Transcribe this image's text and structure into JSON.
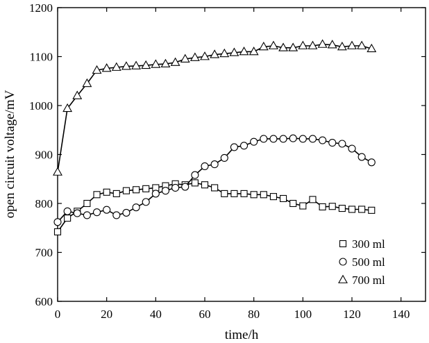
{
  "chart_data": {
    "type": "line",
    "title": "",
    "xlabel": "time/h",
    "ylabel": "open circuit voltage/mV",
    "xlim": [
      0,
      150
    ],
    "ylim": [
      600,
      1200
    ],
    "xticks": [
      "0",
      "20",
      "40",
      "60",
      "80",
      "100",
      "120",
      "140"
    ],
    "yticks": [
      "600",
      "700",
      "800",
      "900",
      "1000",
      "1100",
      "1200"
    ],
    "grid": false,
    "legend_position": "bottom-right",
    "series": [
      {
        "name": "300 ml",
        "marker": "square",
        "x": [
          0,
          4,
          8,
          12,
          16,
          20,
          24,
          28,
          32,
          36,
          40,
          44,
          48,
          52,
          56,
          60,
          64,
          68,
          72,
          76,
          80,
          84,
          88,
          92,
          96,
          100,
          104,
          108,
          112,
          116,
          120,
          124,
          128
        ],
        "y": [
          742,
          770,
          784,
          800,
          818,
          823,
          820,
          826,
          828,
          830,
          832,
          836,
          840,
          838,
          842,
          838,
          832,
          820,
          820,
          820,
          818,
          818,
          814,
          810,
          800,
          795,
          808,
          793,
          794,
          790,
          788,
          788,
          786
        ]
      },
      {
        "name": "500 ml",
        "marker": "circle",
        "x": [
          0,
          4,
          8,
          12,
          16,
          20,
          24,
          28,
          32,
          36,
          40,
          44,
          48,
          52,
          56,
          60,
          64,
          68,
          72,
          76,
          80,
          84,
          88,
          92,
          96,
          100,
          104,
          108,
          112,
          116,
          120,
          124,
          128
        ],
        "y": [
          762,
          784,
          780,
          776,
          782,
          787,
          776,
          781,
          792,
          803,
          820,
          826,
          832,
          834,
          858,
          876,
          880,
          893,
          915,
          918,
          926,
          932,
          932,
          932,
          933,
          932,
          932,
          929,
          924,
          922,
          912,
          895,
          884
        ]
      },
      {
        "name": "700 ml",
        "marker": "triangle",
        "x": [
          0,
          4,
          8,
          12,
          16,
          20,
          24,
          28,
          32,
          36,
          40,
          44,
          48,
          52,
          56,
          60,
          64,
          68,
          72,
          76,
          80,
          84,
          88,
          92,
          96,
          100,
          104,
          108,
          112,
          116,
          120,
          124,
          128
        ],
        "y": [
          864,
          994,
          1020,
          1045,
          1072,
          1076,
          1078,
          1080,
          1081,
          1082,
          1084,
          1085,
          1088,
          1095,
          1098,
          1100,
          1104,
          1106,
          1108,
          1110,
          1110,
          1120,
          1122,
          1118,
          1118,
          1122,
          1122,
          1125,
          1124,
          1120,
          1122,
          1122,
          1116
        ]
      }
    ]
  }
}
